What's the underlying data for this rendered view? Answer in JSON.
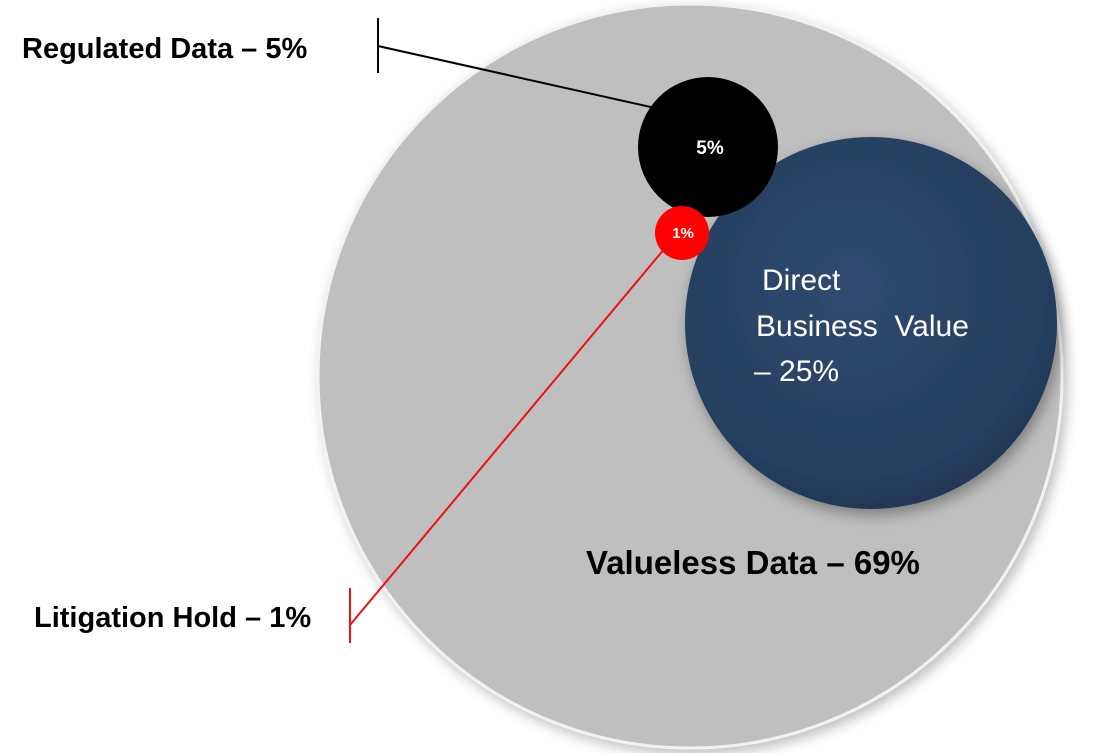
{
  "diagram": {
    "segments": [
      {
        "id": "valueless",
        "label": "Valueless Data – 69%",
        "percent": 69,
        "color": "#bfbfbf"
      },
      {
        "id": "direct",
        "label_lines": [
          "Direct",
          "Business  Value",
          "– 25%"
        ],
        "percent": 25,
        "color": "#26405f"
      },
      {
        "id": "regulated",
        "label": "Regulated Data – 5%",
        "inner_label": "5%",
        "percent": 5,
        "color": "#000000"
      },
      {
        "id": "litigation",
        "label": "Litigation Hold – 1%",
        "inner_label": "1%",
        "percent": 1,
        "color": "#ff0000"
      }
    ],
    "leader_colors": {
      "regulated": "#000000",
      "litigation": "#ee1111"
    }
  }
}
